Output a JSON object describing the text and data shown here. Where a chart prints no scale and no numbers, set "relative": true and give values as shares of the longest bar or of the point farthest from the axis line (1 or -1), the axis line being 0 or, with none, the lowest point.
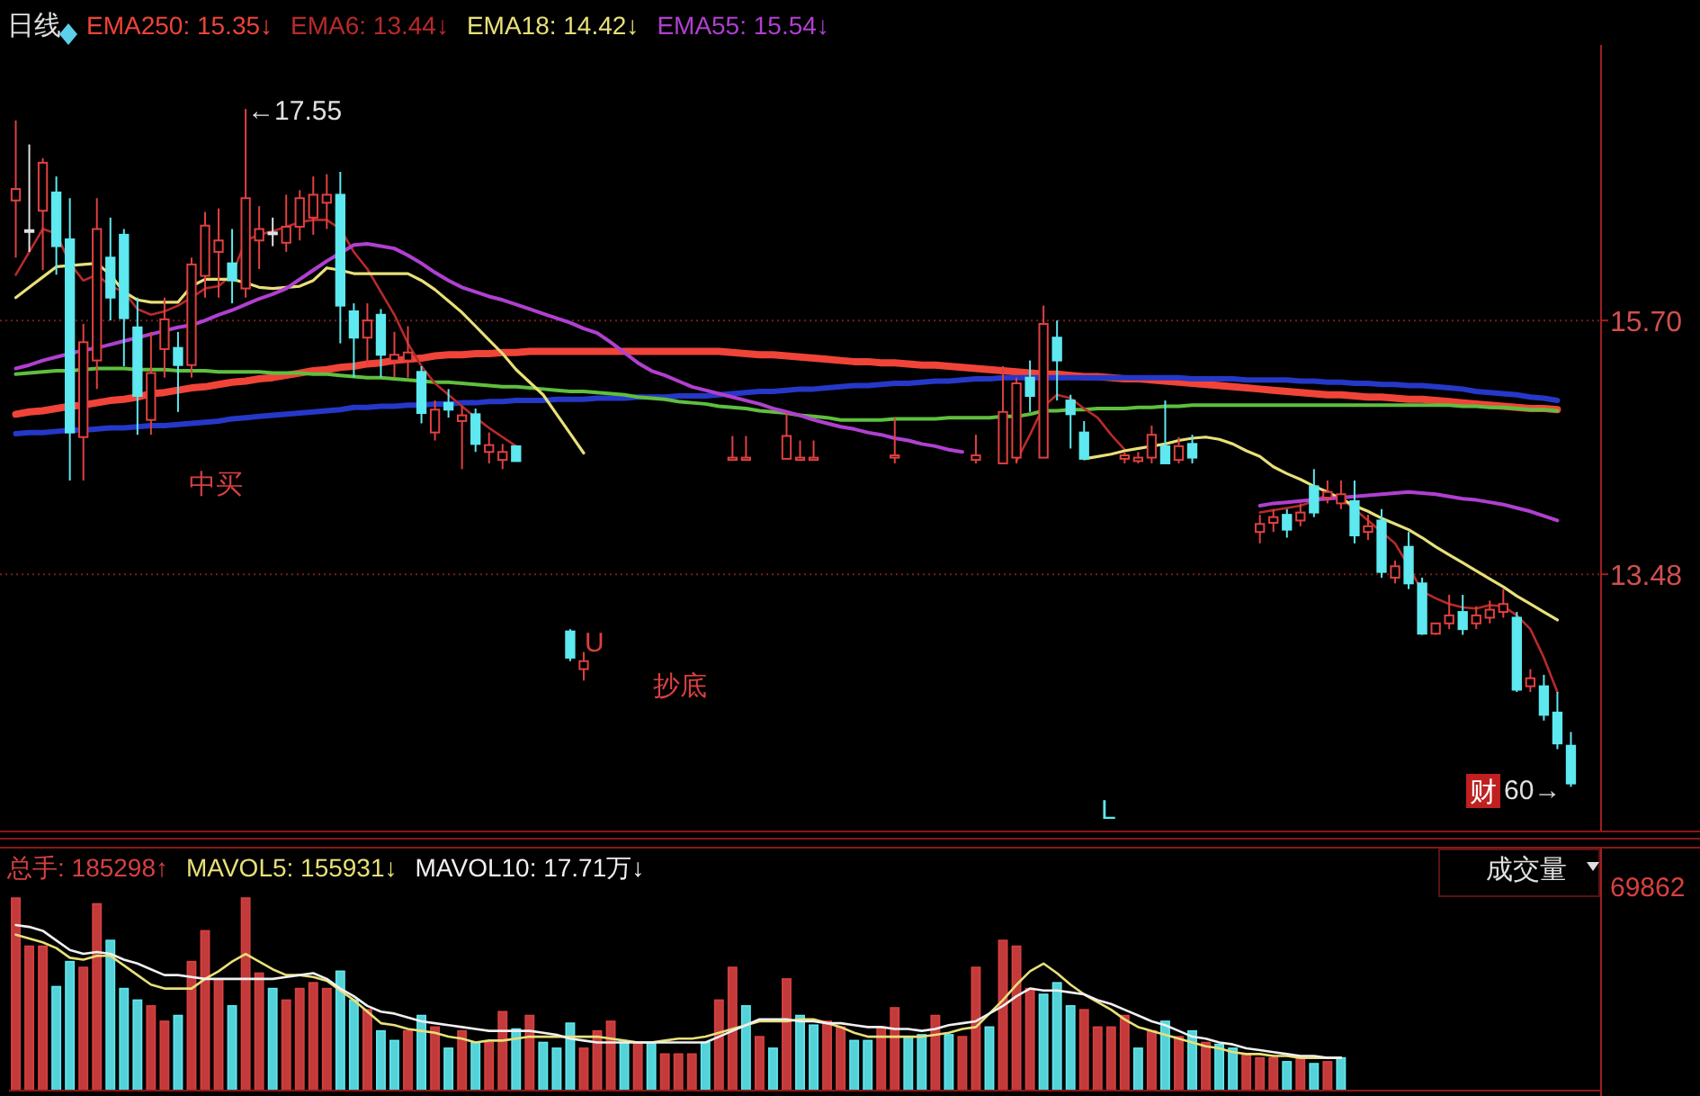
{
  "chart_data": [
    {
      "type": "candlestick",
      "title": "日线",
      "grid": "y",
      "tick_labels": "y",
      "categories": [
        null,
        null,
        null,
        null,
        null,
        null,
        null,
        null,
        null,
        null,
        null,
        null,
        null,
        null,
        null,
        null,
        null,
        null,
        null,
        null,
        null,
        null,
        null,
        null,
        null,
        null,
        null,
        null,
        null,
        null,
        null,
        null,
        null,
        null,
        null,
        null,
        null,
        null,
        null,
        null,
        null,
        null,
        null,
        null,
        null,
        null,
        null,
        null,
        null,
        null,
        null,
        null,
        null,
        null,
        null,
        null,
        null,
        null,
        null,
        null,
        null,
        null,
        null,
        null,
        null,
        null,
        null,
        null,
        null,
        null,
        null,
        null,
        null,
        null,
        null,
        null,
        null,
        null,
        null,
        null,
        null,
        null,
        null,
        null,
        null,
        null,
        null,
        null,
        null,
        null,
        null,
        null,
        null,
        null,
        null,
        null,
        null,
        null,
        null,
        null,
        null,
        null,
        null,
        null,
        null,
        null,
        null,
        null,
        null,
        null,
        null,
        null,
        null,
        null,
        null,
        null
      ],
      "ylim": [
        11.23,
        18.11
      ],
      "yticks": [
        {
          "value": 15.7,
          "label": "15.70"
        },
        13.48
      ],
      "annotations": [
        "←17.55",
        "中买",
        "抄底",
        "财",
        "60→",
        "L",
        "U"
      ],
      "series": [
        {
          "type": "line",
          "name": "EMA250: 15.35↓",
          "color": "#f04438",
          "values": [
            14.88,
            14.9,
            14.91,
            14.93,
            14.95,
            14.96,
            14.98,
            15.0,
            15.01,
            15.03,
            15.06,
            15.07,
            15.09,
            15.11,
            15.12,
            15.14,
            15.16,
            15.17,
            15.19,
            15.2,
            15.22,
            15.24,
            15.26,
            15.27,
            15.29,
            15.3,
            15.32,
            15.33,
            15.35,
            15.36,
            15.37,
            15.39,
            15.4,
            15.4,
            15.41,
            15.41,
            15.42,
            15.42,
            15.43,
            15.43,
            15.43,
            15.43,
            15.43,
            15.43,
            15.43,
            15.43,
            15.43,
            15.43,
            15.43,
            15.43,
            15.43,
            15.43,
            15.43,
            15.42,
            15.41,
            15.4,
            15.4,
            15.39,
            15.38,
            15.37,
            15.36,
            15.35,
            15.34,
            15.34,
            15.33,
            15.33,
            15.32,
            15.31,
            15.31,
            15.3,
            15.29,
            15.28,
            15.27,
            15.26,
            15.25,
            15.24,
            15.23,
            15.23,
            15.22,
            15.21,
            15.21,
            15.2,
            15.19,
            15.19,
            15.18,
            15.17,
            15.16,
            15.15,
            15.14,
            15.13,
            15.12,
            15.11,
            15.1,
            15.09,
            15.08,
            15.07,
            15.06,
            15.05,
            15.05,
            15.04,
            15.03,
            15.03,
            15.02,
            15.01,
            15.01,
            15.0,
            14.99,
            14.98,
            14.97,
            14.96,
            14.95,
            14.94,
            14.93,
            14.93,
            14.92,
            null
          ]
        },
        {
          "type": "line",
          "color": "#2638c8",
          "values": [
            14.71,
            14.72,
            14.72,
            14.73,
            14.74,
            14.74,
            14.75,
            14.76,
            14.76,
            14.77,
            14.78,
            14.78,
            14.79,
            14.8,
            14.81,
            14.82,
            14.84,
            14.85,
            14.86,
            14.87,
            14.88,
            14.89,
            14.9,
            14.91,
            14.92,
            14.94,
            14.94,
            14.95,
            14.95,
            14.96,
            14.96,
            14.97,
            14.97,
            14.98,
            14.98,
            14.99,
            14.99,
            15.0,
            15.0,
            15.0,
            15.01,
            15.01,
            15.01,
            15.02,
            15.02,
            15.02,
            15.03,
            15.03,
            15.03,
            15.04,
            15.04,
            15.04,
            15.05,
            15.06,
            15.07,
            15.08,
            15.08,
            15.09,
            15.1,
            15.1,
            15.11,
            15.12,
            15.13,
            15.13,
            15.14,
            15.15,
            15.15,
            15.16,
            15.17,
            15.17,
            15.18,
            15.19,
            15.19,
            15.2,
            15.2,
            15.2,
            15.2,
            15.2,
            15.2,
            15.2,
            15.2,
            15.2,
            15.2,
            15.2,
            15.2,
            15.2,
            15.2,
            15.19,
            15.19,
            15.19,
            15.19,
            15.18,
            15.18,
            15.18,
            15.18,
            15.17,
            15.17,
            15.16,
            15.16,
            15.15,
            15.15,
            15.14,
            15.14,
            15.13,
            15.13,
            15.12,
            15.11,
            15.1,
            15.08,
            15.07,
            15.06,
            15.05,
            15.03,
            15.02,
            15.0,
            null
          ]
        },
        {
          "type": "line",
          "color": "#5fbf3f",
          "values": [
            15.23,
            15.24,
            15.25,
            15.26,
            15.26,
            15.27,
            15.28,
            15.28,
            15.28,
            15.27,
            15.27,
            15.27,
            15.26,
            15.26,
            15.26,
            15.25,
            15.25,
            15.25,
            15.25,
            15.24,
            15.24,
            15.24,
            15.23,
            15.23,
            15.22,
            15.21,
            15.2,
            15.2,
            15.19,
            15.18,
            15.17,
            15.16,
            15.16,
            15.15,
            15.14,
            15.13,
            15.12,
            15.12,
            15.11,
            15.1,
            15.09,
            15.08,
            15.08,
            15.07,
            15.06,
            15.05,
            15.03,
            15.02,
            15.01,
            14.99,
            14.98,
            14.97,
            14.95,
            14.94,
            14.93,
            14.91,
            14.9,
            14.89,
            14.87,
            14.86,
            14.85,
            14.83,
            14.83,
            14.83,
            14.83,
            14.84,
            14.84,
            14.84,
            14.84,
            14.85,
            14.85,
            14.85,
            14.85,
            14.86,
            14.86,
            14.88,
            14.91,
            14.91,
            14.92,
            14.92,
            14.93,
            14.93,
            14.93,
            14.94,
            14.94,
            14.95,
            14.95,
            14.96,
            14.96,
            14.96,
            14.96,
            14.96,
            14.96,
            14.96,
            14.96,
            14.96,
            14.96,
            14.96,
            14.96,
            14.96,
            14.96,
            14.96,
            14.96,
            14.96,
            14.96,
            14.96,
            14.96,
            14.95,
            14.95,
            14.94,
            14.94,
            14.93,
            14.92,
            14.92,
            14.91,
            null
          ]
        },
        {
          "type": "line",
          "name": "EMA6: 13.44↓",
          "color": "#b82a2a",
          "values": [
            16.1,
            16.3,
            16.5,
            16.46,
            16.2,
            16.05,
            16.1,
            16.0,
            15.95,
            15.8,
            15.75,
            15.78,
            15.83,
            15.9,
            15.98,
            16.0,
            16.1,
            16.4,
            16.45,
            16.48,
            16.52,
            16.56,
            16.58,
            16.58,
            16.5,
            16.3,
            16.15,
            15.95,
            15.75,
            15.5,
            15.3,
            15.15,
            15.05,
            14.95,
            14.85,
            14.76,
            14.68,
            14.6,
            null,
            null,
            null,
            null,
            null,
            null,
            null,
            null,
            null,
            null,
            null,
            null,
            null,
            null,
            null,
            null,
            null,
            null,
            null,
            null,
            null,
            null,
            null,
            null,
            null,
            null,
            null,
            null,
            null,
            null,
            null,
            null,
            null,
            null,
            null,
            null,
            14.47,
            14.7,
            14.95,
            15.05,
            15.02,
            14.93,
            14.85,
            14.7,
            14.57,
            null,
            null,
            null,
            null,
            null,
            null,
            null,
            null,
            null,
            14.02,
            14.04,
            14.06,
            14.08,
            14.12,
            14.18,
            14.14,
            14.05,
            13.95,
            13.85,
            13.75,
            13.55,
            13.33,
            13.27,
            13.22,
            13.19,
            13.18,
            13.21,
            13.2,
            13.12,
            13.0,
            12.75,
            12.45,
            null
          ]
        },
        {
          "type": "line",
          "name": "EMA18: 14.42↓",
          "color": "#e8e078",
          "values": [
            15.9,
            15.99,
            16.08,
            16.17,
            16.18,
            16.19,
            16.2,
            16.1,
            15.95,
            15.88,
            15.86,
            15.86,
            15.86,
            16.0,
            16.06,
            16.06,
            16.06,
            16.03,
            15.99,
            15.98,
            15.99,
            16.0,
            16.05,
            16.16,
            16.14,
            16.11,
            16.11,
            16.11,
            16.11,
            16.11,
            16.05,
            15.97,
            15.87,
            15.77,
            15.65,
            15.53,
            15.41,
            15.27,
            15.16,
            15.05,
            14.88,
            14.71,
            14.54,
            null,
            null,
            null,
            null,
            null,
            null,
            null,
            null,
            null,
            null,
            null,
            null,
            null,
            null,
            null,
            null,
            null,
            null,
            null,
            null,
            null,
            null,
            null,
            null,
            null,
            null,
            null,
            null,
            null,
            null,
            null,
            null,
            null,
            null,
            null,
            null,
            14.49,
            14.51,
            14.53,
            14.56,
            14.58,
            14.6,
            14.62,
            14.65,
            14.67,
            14.68,
            14.66,
            14.62,
            14.56,
            14.51,
            14.42,
            14.36,
            14.31,
            14.25,
            14.2,
            14.14,
            14.08,
            14.03,
            13.97,
            13.92,
            13.87,
            13.8,
            13.72,
            13.65,
            13.58,
            13.51,
            13.44,
            13.37,
            13.29,
            13.22,
            13.15,
            13.08,
            null
          ]
        },
        {
          "type": "line",
          "name": "EMA55: 15.54↓",
          "color": "#b040d0",
          "values": [
            15.28,
            15.31,
            15.35,
            15.38,
            15.41,
            15.44,
            15.46,
            15.49,
            15.52,
            15.55,
            15.58,
            15.61,
            15.64,
            15.66,
            15.7,
            15.75,
            15.79,
            15.84,
            15.89,
            15.93,
            15.98,
            16.06,
            16.14,
            16.22,
            16.29,
            16.36,
            16.37,
            16.35,
            16.33,
            16.27,
            16.2,
            16.12,
            16.05,
            15.99,
            15.95,
            15.91,
            15.88,
            15.84,
            15.8,
            15.76,
            15.72,
            15.68,
            15.63,
            15.59,
            15.51,
            15.42,
            15.33,
            15.26,
            15.22,
            15.17,
            15.12,
            15.09,
            15.06,
            15.03,
            15.0,
            14.97,
            14.93,
            14.9,
            14.87,
            14.83,
            14.8,
            14.77,
            14.75,
            14.72,
            14.7,
            14.67,
            14.65,
            14.62,
            14.6,
            14.57,
            14.55,
            null,
            null,
            null,
            null,
            null,
            null,
            null,
            null,
            null,
            null,
            null,
            null,
            null,
            null,
            null,
            null,
            null,
            null,
            null,
            null,
            null,
            14.08,
            14.1,
            14.11,
            14.12,
            14.13,
            14.14,
            14.15,
            14.16,
            14.17,
            14.18,
            14.19,
            14.2,
            14.19,
            14.18,
            14.16,
            14.14,
            14.13,
            14.11,
            14.09,
            14.06,
            14.03,
            13.99,
            13.95,
            null
          ]
        }
      ],
      "ohlc": [
        [
          16.75,
          17.45,
          16.25,
          16.85
        ],
        [
          16.49,
          17.24,
          16.3,
          16.49
        ],
        [
          16.66,
          17.12,
          16.14,
          17.08
        ],
        [
          16.82,
          16.96,
          16.1,
          16.35
        ],
        [
          16.41,
          16.77,
          14.3,
          14.72
        ],
        [
          14.68,
          15.67,
          14.3,
          15.51
        ],
        [
          15.35,
          16.77,
          15.1,
          16.5
        ],
        [
          16.25,
          16.6,
          15.7,
          15.9
        ],
        [
          16.45,
          16.5,
          15.3,
          15.72
        ],
        [
          15.64,
          15.9,
          14.7,
          15.04
        ],
        [
          14.83,
          15.6,
          14.7,
          15.24
        ],
        [
          15.45,
          15.9,
          15.2,
          15.71
        ],
        [
          15.46,
          15.6,
          14.9,
          15.31
        ],
        [
          15.31,
          16.25,
          15.2,
          16.19
        ],
        [
          16.09,
          16.65,
          15.9,
          16.53
        ],
        [
          16.3,
          16.68,
          15.9,
          16.4
        ],
        [
          16.2,
          16.5,
          15.85,
          16.05
        ],
        [
          15.98,
          17.55,
          15.9,
          16.77
        ],
        [
          16.4,
          16.7,
          16.15,
          16.5
        ],
        [
          16.47,
          16.6,
          16.35,
          16.47
        ],
        [
          16.38,
          16.8,
          16.3,
          16.52
        ],
        [
          16.52,
          16.84,
          16.4,
          16.77
        ],
        [
          16.6,
          16.96,
          16.45,
          16.8
        ],
        [
          16.73,
          16.98,
          16.5,
          16.8
        ],
        [
          16.8,
          17.0,
          15.5,
          15.83
        ],
        [
          15.78,
          15.85,
          15.2,
          15.55
        ],
        [
          15.55,
          15.85,
          15.3,
          15.7
        ],
        [
          15.75,
          15.8,
          15.2,
          15.4
        ],
        [
          15.35,
          15.6,
          15.2,
          15.4
        ],
        [
          15.35,
          15.65,
          15.2,
          15.42
        ],
        [
          15.25,
          15.3,
          14.8,
          14.89
        ],
        [
          14.72,
          15.0,
          14.65,
          14.92
        ],
        [
          14.98,
          15.1,
          14.85,
          14.92
        ],
        [
          14.82,
          14.95,
          14.4,
          14.87
        ],
        [
          14.88,
          14.93,
          14.55,
          14.62
        ],
        [
          14.55,
          14.72,
          14.45,
          14.61
        ],
        [
          14.48,
          14.62,
          14.4,
          14.55
        ],
        [
          14.6,
          14.6,
          14.47,
          14.47
        ],
        null,
        null,
        null,
        [
          12.98,
          13.0,
          12.72,
          12.75
        ],
        [
          12.65,
          12.8,
          12.55,
          12.72
        ],
        null,
        null,
        null,
        null,
        null,
        null,
        null,
        null,
        null,
        null,
        [
          14.48,
          14.69,
          14.48,
          14.5
        ],
        [
          14.48,
          14.69,
          14.48,
          14.5
        ],
        null,
        null,
        [
          14.49,
          14.9,
          14.49,
          14.69
        ],
        [
          14.48,
          14.65,
          14.48,
          14.5
        ],
        [
          14.48,
          14.65,
          14.48,
          14.5
        ],
        null,
        null,
        null,
        null,
        null,
        [
          14.5,
          14.85,
          14.45,
          14.52
        ],
        null,
        null,
        null,
        null,
        null,
        [
          14.48,
          14.7,
          14.45,
          14.52
        ],
        null,
        [
          14.45,
          15.3,
          14.45,
          14.9
        ],
        [
          14.5,
          15.2,
          14.45,
          15.15
        ],
        [
          15.2,
          15.35,
          14.9,
          15.04
        ],
        [
          14.5,
          15.83,
          14.5,
          15.67
        ],
        [
          15.55,
          15.7,
          15.0,
          15.35
        ],
        [
          15.0,
          15.05,
          14.58,
          14.88
        ],
        [
          14.72,
          14.82,
          14.49,
          14.49
        ],
        null,
        null,
        [
          14.49,
          14.55,
          14.45,
          14.52
        ],
        [
          14.47,
          14.55,
          14.45,
          14.5
        ],
        [
          14.5,
          14.78,
          14.45,
          14.7
        ],
        [
          14.6,
          15.0,
          14.45,
          14.45
        ],
        [
          14.48,
          14.68,
          14.45,
          14.6
        ],
        [
          14.62,
          14.7,
          14.45,
          14.5
        ],
        null,
        null,
        null,
        null,
        [
          13.85,
          14.0,
          13.75,
          13.92
        ],
        [
          13.93,
          14.05,
          13.85,
          13.98
        ],
        [
          14.0,
          14.05,
          13.8,
          13.87
        ],
        [
          13.95,
          14.1,
          13.9,
          14.02
        ],
        [
          14.25,
          14.4,
          13.98,
          14.02
        ],
        [
          14.15,
          14.3,
          14.1,
          14.2
        ],
        [
          14.1,
          14.3,
          14.05,
          14.18
        ],
        [
          14.12,
          14.3,
          13.75,
          13.82
        ],
        [
          13.85,
          14.0,
          13.78,
          13.9
        ],
        [
          13.95,
          14.05,
          13.45,
          13.5
        ],
        [
          13.45,
          13.6,
          13.4,
          13.55
        ],
        [
          13.72,
          13.85,
          13.35,
          13.4
        ],
        [
          13.4,
          13.45,
          12.95,
          12.96
        ],
        [
          12.96,
          13.05,
          12.95,
          13.05
        ],
        [
          13.05,
          13.3,
          13.0,
          13.12
        ],
        [
          13.15,
          13.3,
          12.95,
          13.0
        ],
        [
          13.05,
          13.2,
          13.0,
          13.12
        ],
        [
          13.1,
          13.25,
          13.05,
          13.17
        ],
        [
          13.15,
          13.35,
          13.1,
          13.22
        ],
        [
          13.1,
          13.15,
          12.45,
          12.47
        ],
        [
          12.5,
          12.65,
          12.45,
          12.57
        ],
        [
          12.5,
          12.6,
          12.2,
          12.25
        ],
        [
          12.27,
          12.45,
          11.95,
          12.0
        ],
        [
          11.98,
          12.1,
          11.62,
          11.65
        ]
      ],
      "colors": [
        "#e04040",
        "#e0e0e0",
        "#e04040",
        "#5ee8f0",
        "#5ee8f0",
        "#e04040",
        "#e04040",
        "#5ee8f0",
        "#5ee8f0",
        "#5ee8f0",
        "#e04040",
        "#e04040",
        "#5ee8f0",
        "#e04040",
        "#e04040",
        "#e04040",
        "#5ee8f0",
        "#e04040",
        "#e04040",
        "#e0e0e0",
        "#e04040",
        "#e04040",
        "#e04040",
        "#e04040",
        "#5ee8f0",
        "#5ee8f0",
        "#e04040",
        "#5ee8f0",
        "#e04040",
        "#e04040",
        "#5ee8f0",
        "#e04040",
        "#5ee8f0",
        "#e04040",
        "#5ee8f0",
        "#e04040",
        "#e04040",
        "#5ee8f0",
        null,
        null,
        null,
        "#5ee8f0",
        "#e04040",
        null,
        null,
        null,
        null,
        null,
        null,
        null,
        null,
        null,
        null,
        "#e04040",
        "#e04040",
        null,
        null,
        "#e04040",
        "#e04040",
        "#e04040",
        null,
        null,
        null,
        null,
        null,
        "#e04040",
        null,
        null,
        null,
        null,
        null,
        "#e04040",
        null,
        "#e04040",
        "#e04040",
        "#5ee8f0",
        "#e04040",
        "#5ee8f0",
        "#5ee8f0",
        "#5ee8f0",
        null,
        null,
        "#e04040",
        "#e04040",
        "#e04040",
        "#5ee8f0",
        "#e04040",
        "#5ee8f0",
        null,
        null,
        null,
        null,
        "#e04040",
        "#e04040",
        "#5ee8f0",
        "#e04040",
        "#5ee8f0",
        "#e04040",
        "#e04040",
        "#5ee8f0",
        "#e04040",
        "#5ee8f0",
        "#e04040",
        "#5ee8f0",
        "#5ee8f0",
        "#e04040",
        "#e04040",
        "#5ee8f0",
        "#e04040",
        "#e04040",
        "#e04040",
        "#5ee8f0",
        "#e04040",
        "#5ee8f0",
        "#5ee8f0",
        "#5ee8f0"
      ]
    },
    {
      "type": "bar",
      "relative": true,
      "categories": [
        null,
        null,
        null,
        null,
        null,
        null,
        null,
        null,
        null,
        null,
        null,
        null,
        null,
        null,
        null,
        null,
        null,
        null,
        null,
        null,
        null,
        null,
        null,
        null,
        null,
        null,
        null,
        null,
        null,
        null,
        null,
        null,
        null,
        null,
        null,
        null,
        null,
        null,
        null,
        null,
        null,
        null,
        null,
        null,
        null,
        null,
        null,
        null,
        null,
        null,
        null,
        null,
        null,
        null,
        null,
        null,
        null,
        null,
        null,
        null,
        null,
        null,
        null,
        null,
        null,
        null,
        null,
        null,
        null,
        null,
        null,
        null,
        null,
        null,
        null,
        null,
        null,
        null,
        null,
        null,
        null,
        null,
        null,
        null,
        null,
        null,
        null,
        null,
        null,
        null,
        null,
        null,
        null,
        null,
        null,
        null,
        null,
        null,
        null,
        null,
        null,
        null,
        null,
        null,
        null,
        null,
        null,
        null,
        null,
        null,
        null,
        null,
        null,
        null,
        null,
        null
      ],
      "annotations": [
        "成交量",
        "69862"
      ],
      "series": [
        {
          "name": "总手: 185298↑",
          "values": [
            1.0,
            0.75,
            0.75,
            0.54,
            0.67,
            0.64,
            0.97,
            0.78,
            0.53,
            0.47,
            0.44,
            0.36,
            0.39,
            0.67,
            0.83,
            0.58,
            0.44,
            1.0,
            0.61,
            0.53,
            0.47,
            0.53,
            0.56,
            0.53,
            0.62,
            0.47,
            0.42,
            0.31,
            0.26,
            0.31,
            0.39,
            0.33,
            0.22,
            0.31,
            0.25,
            0.25,
            0.41,
            0.32,
            0.39,
            0.25,
            0.22,
            0.35,
            0.22,
            0.31,
            0.36,
            0.25,
            0.25,
            0.25,
            0.19,
            0.19,
            0.19,
            0.25,
            0.47,
            0.64,
            0.44,
            0.28,
            0.22,
            0.58,
            0.39,
            0.34,
            0.36,
            0.33,
            0.26,
            0.26,
            0.33,
            0.43,
            0.28,
            0.29,
            0.39,
            0.29,
            0.28,
            0.64,
            0.33,
            0.78,
            0.75,
            0.53,
            0.5,
            0.56,
            0.44,
            0.42,
            0.33,
            0.33,
            0.39,
            0.22,
            0.31,
            0.36,
            0.28,
            0.31,
            0.25,
            0.24,
            0.22,
            0.19,
            0.17,
            0.17,
            0.15,
            0.17,
            0.14,
            0.15,
            0.17,
            null,
            null,
            null,
            null,
            null,
            null,
            null,
            null,
            null,
            null,
            null,
            null,
            null,
            null,
            null,
            null,
            null
          ],
          "colors": [
            "#d84040",
            "#d84040",
            "#d84040",
            "#5ee8f0",
            "#5ee8f0",
            "#d84040",
            "#d84040",
            "#5ee8f0",
            "#5ee8f0",
            "#5ee8f0",
            "#d84040",
            "#d84040",
            "#5ee8f0",
            "#d84040",
            "#d84040",
            "#d84040",
            "#5ee8f0",
            "#d84040",
            "#d84040",
            "#5ee8f0",
            "#d84040",
            "#d84040",
            "#d84040",
            "#d84040",
            "#5ee8f0",
            "#5ee8f0",
            "#d84040",
            "#5ee8f0",
            "#5ee8f0",
            "#d84040",
            "#5ee8f0",
            "#d84040",
            "#5ee8f0",
            "#d84040",
            "#5ee8f0",
            "#d84040",
            "#d84040",
            "#5ee8f0",
            "#d84040",
            "#5ee8f0",
            "#5ee8f0",
            "#5ee8f0",
            "#d84040",
            "#d84040",
            "#d84040",
            "#5ee8f0",
            "#d84040",
            "#5ee8f0",
            "#d84040",
            "#d84040",
            "#d84040",
            "#5ee8f0",
            "#d84040",
            "#d84040",
            "#5ee8f0",
            "#d84040",
            "#5ee8f0",
            "#d84040",
            "#5ee8f0",
            "#5ee8f0",
            "#d84040",
            "#d84040",
            "#5ee8f0",
            "#5ee8f0",
            "#d84040",
            "#d84040",
            "#5ee8f0",
            "#5ee8f0",
            "#d84040",
            "#5ee8f0",
            "#d84040",
            "#d84040",
            "#5ee8f0",
            "#d84040",
            "#d84040",
            "#d84040",
            "#5ee8f0",
            "#5ee8f0",
            "#5ee8f0",
            "#d84040",
            "#d84040",
            "#d84040",
            "#d84040",
            "#5ee8f0",
            "#d84040",
            "#5ee8f0",
            "#d84040",
            "#5ee8f0",
            "#d84040",
            "#5ee8f0",
            "#5ee8f0",
            "#d84040",
            "#d84040",
            "#d84040",
            "#5ee8f0",
            "#d84040",
            "#5ee8f0",
            "#d84040",
            "#5ee8f0",
            null,
            null,
            null,
            null,
            null,
            null,
            null,
            null,
            null,
            null,
            null,
            null,
            null,
            null,
            null,
            null,
            null
          ]
        },
        {
          "type": "line",
          "name": "MAVOL5: 155931↓",
          "color": "#e8e078",
          "values": [
            0.81,
            0.79,
            0.77,
            0.74,
            0.69,
            0.68,
            0.7,
            0.7,
            0.65,
            0.6,
            0.55,
            0.53,
            0.53,
            0.53,
            0.58,
            0.62,
            0.67,
            0.71,
            0.67,
            0.63,
            0.6,
            0.6,
            0.59,
            0.57,
            0.52,
            0.47,
            0.41,
            0.35,
            0.34,
            0.32,
            0.31,
            0.3,
            0.28,
            0.27,
            0.25,
            0.26,
            0.26,
            0.27,
            0.28,
            0.28,
            0.28,
            0.28,
            0.28,
            0.28,
            0.27,
            0.26,
            0.25,
            0.25,
            0.26,
            0.27,
            0.27,
            0.28,
            0.3,
            0.32,
            0.34,
            0.36,
            0.36,
            0.36,
            0.37,
            0.37,
            0.35,
            0.33,
            0.3,
            0.28,
            0.28,
            0.28,
            0.28,
            0.28,
            0.29,
            0.3,
            0.32,
            0.33,
            0.4,
            0.47,
            0.55,
            0.62,
            0.66,
            0.61,
            0.55,
            0.5,
            0.46,
            0.42,
            0.37,
            0.33,
            0.31,
            0.29,
            0.27,
            0.25,
            0.23,
            0.22,
            0.2,
            0.19,
            0.19,
            0.18,
            0.18,
            0.17,
            0.17,
            0.17,
            0.17,
            null,
            null,
            null,
            null,
            null,
            null,
            null,
            null,
            null,
            null,
            null,
            null,
            null,
            null,
            null,
            null,
            null
          ]
        },
        {
          "type": "line",
          "name": "MAVOL10: 17.71万↓",
          "color": "#f0f0f0",
          "values": [
            0.86,
            0.85,
            0.83,
            0.78,
            0.73,
            0.71,
            0.72,
            0.71,
            0.68,
            0.66,
            0.63,
            0.6,
            0.6,
            0.59,
            0.58,
            0.58,
            0.58,
            0.58,
            0.58,
            0.58,
            0.59,
            0.6,
            0.61,
            0.58,
            0.53,
            0.49,
            0.44,
            0.41,
            0.4,
            0.38,
            0.36,
            0.35,
            0.34,
            0.33,
            0.32,
            0.31,
            0.31,
            0.31,
            0.31,
            0.3,
            0.29,
            0.27,
            0.26,
            0.25,
            0.25,
            0.25,
            0.25,
            0.25,
            0.25,
            0.25,
            0.25,
            0.25,
            0.28,
            0.31,
            0.34,
            0.37,
            0.37,
            0.37,
            0.36,
            0.36,
            0.35,
            0.35,
            0.34,
            0.33,
            0.33,
            0.32,
            0.32,
            0.31,
            0.32,
            0.34,
            0.35,
            0.36,
            0.4,
            0.44,
            0.49,
            0.53,
            0.52,
            0.52,
            0.51,
            0.5,
            0.47,
            0.45,
            0.42,
            0.39,
            0.36,
            0.34,
            0.31,
            0.28,
            0.27,
            0.25,
            0.24,
            0.22,
            0.21,
            0.2,
            0.19,
            0.18,
            0.18,
            0.17,
            0.17,
            null,
            null,
            null,
            null,
            null,
            null,
            null,
            null,
            null,
            null,
            null,
            null,
            null,
            null,
            null,
            null,
            null
          ]
        }
      ]
    }
  ]
}
